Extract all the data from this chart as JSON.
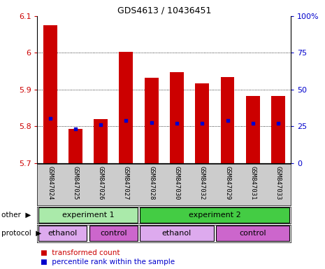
{
  "title": "GDS4613 / 10436451",
  "samples": [
    "GSM847024",
    "GSM847025",
    "GSM847026",
    "GSM847027",
    "GSM847028",
    "GSM847030",
    "GSM847032",
    "GSM847029",
    "GSM847031",
    "GSM847033"
  ],
  "transformed_count": [
    6.075,
    5.793,
    5.82,
    6.003,
    5.933,
    5.948,
    5.916,
    5.934,
    5.883,
    5.883
  ],
  "percentile_rank_y": [
    5.821,
    5.793,
    5.805,
    5.815,
    5.81,
    5.808,
    5.808,
    5.815,
    5.808,
    5.808
  ],
  "y_min": 5.7,
  "y_max": 6.1,
  "y_ticks": [
    5.7,
    5.8,
    5.9,
    6.0,
    6.1
  ],
  "y_tick_labels": [
    "5.7",
    "5.8",
    "5.9",
    "6",
    "6.1"
  ],
  "y2_ticks": [
    0,
    25,
    50,
    75,
    100
  ],
  "y2_tick_labels": [
    "0",
    "25",
    "50",
    "75",
    "100%"
  ],
  "bar_color": "#cc0000",
  "percentile_color": "#0000cc",
  "bar_width": 0.55,
  "other_labels": [
    {
      "text": "experiment 1",
      "start": 0,
      "end": 3,
      "color": "#aaeaaa"
    },
    {
      "text": "experiment 2",
      "start": 4,
      "end": 9,
      "color": "#44cc44"
    }
  ],
  "protocol_labels": [
    {
      "text": "ethanol",
      "start": 0,
      "end": 1,
      "color": "#ddaaee"
    },
    {
      "text": "control",
      "start": 2,
      "end": 3,
      "color": "#cc66cc"
    },
    {
      "text": "ethanol",
      "start": 4,
      "end": 6,
      "color": "#ddaaee"
    },
    {
      "text": "control",
      "start": 7,
      "end": 9,
      "color": "#cc66cc"
    }
  ],
  "legend_items": [
    {
      "label": "transformed count",
      "color": "#cc0000"
    },
    {
      "label": "percentile rank within the sample",
      "color": "#0000cc"
    }
  ],
  "tick_color_left": "#cc0000",
  "tick_color_right": "#0000cc",
  "other_row_label": "other",
  "protocol_row_label": "protocol",
  "sample_area_bg": "#cccccc"
}
